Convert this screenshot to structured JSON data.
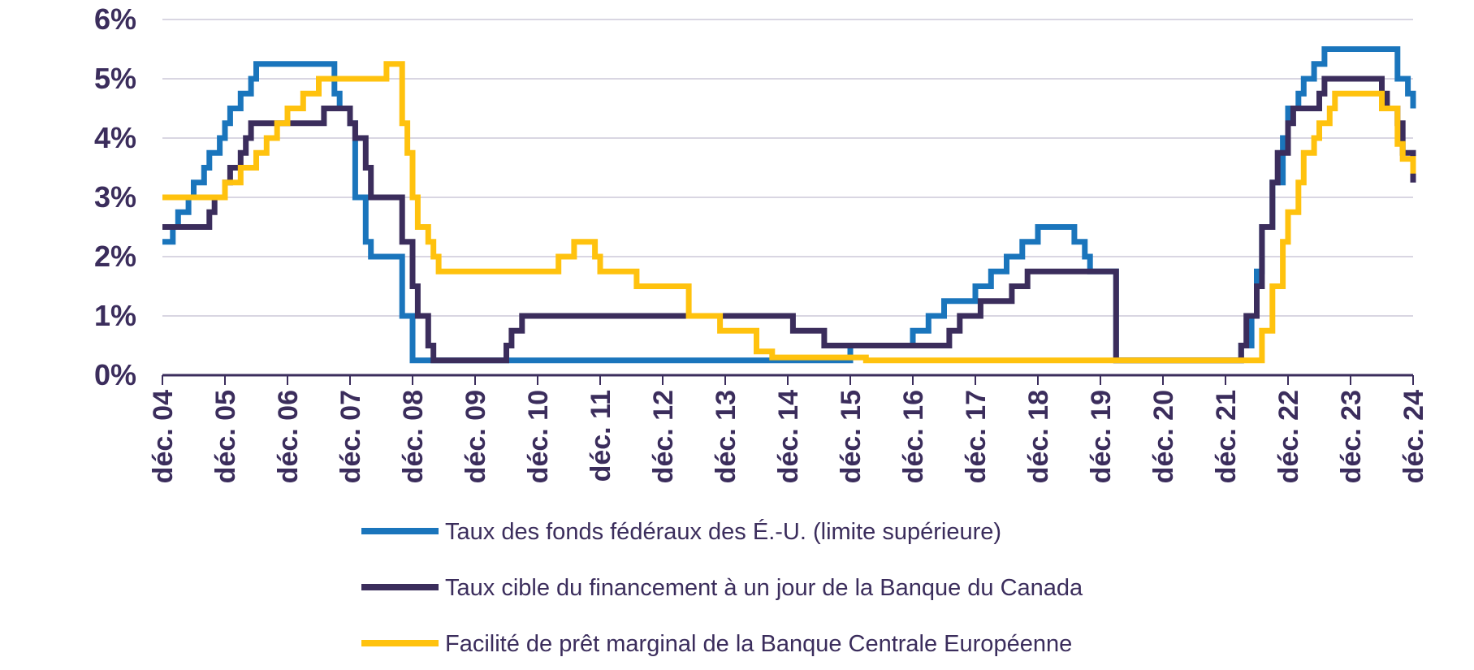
{
  "chart_data": {
    "type": "line",
    "step": true,
    "title": "",
    "xlabel": "",
    "ylabel": "",
    "ylim": [
      0,
      6
    ],
    "yticks": [
      "0%",
      "1%",
      "2%",
      "3%",
      "4%",
      "5%",
      "6%"
    ],
    "xticks": [
      "déc. 04",
      "déc. 05",
      "déc. 06",
      "déc. 07",
      "déc. 08",
      "déc. 09",
      "déc. 10",
      "déc. 11",
      "déc. 12",
      "déc. 13",
      "déc. 14",
      "déc. 15",
      "déc. 16",
      "déc. 17",
      "déc. 18",
      "déc. 19",
      "déc. 20",
      "déc. 21",
      "déc. 22",
      "déc. 23",
      "déc. 24"
    ],
    "grid": "horizontal",
    "legend_position": "bottom",
    "series": [
      {
        "name": "Taux des fonds fédéraux des É.-U. (limite supérieure)",
        "color": "#1a75bc",
        "x": [
          "2004-12",
          "2005-02",
          "2005-03",
          "2005-05",
          "2005-06",
          "2005-08",
          "2005-09",
          "2005-11",
          "2005-12",
          "2006-01",
          "2006-03",
          "2006-05",
          "2006-06",
          "2007-09",
          "2007-10",
          "2007-12",
          "2008-01",
          "2008-03",
          "2008-04",
          "2008-10",
          "2008-12",
          "2015-12",
          "2016-12",
          "2017-03",
          "2017-06",
          "2017-12",
          "2018-03",
          "2018-06",
          "2018-09",
          "2018-12",
          "2019-07",
          "2019-09",
          "2019-10",
          "2020-03",
          "2022-03",
          "2022-05",
          "2022-06",
          "2022-07",
          "2022-09",
          "2022-11",
          "2022-12",
          "2023-02",
          "2023-03",
          "2023-05",
          "2023-07",
          "2024-09",
          "2024-11",
          "2024-12"
        ],
        "values": [
          2.25,
          2.5,
          2.75,
          3.0,
          3.25,
          3.5,
          3.75,
          4.0,
          4.25,
          4.5,
          4.75,
          5.0,
          5.25,
          4.75,
          4.5,
          4.25,
          3.0,
          2.25,
          2.0,
          1.0,
          0.25,
          0.5,
          0.75,
          1.0,
          1.25,
          1.5,
          1.75,
          2.0,
          2.25,
          2.5,
          2.25,
          2.0,
          1.75,
          0.25,
          0.5,
          1.0,
          1.75,
          2.5,
          3.25,
          4.0,
          4.5,
          4.75,
          5.0,
          5.25,
          5.5,
          5.0,
          4.75,
          4.5
        ]
      },
      {
        "name": "Taux cible du financement à un jour de la Banque du Canada",
        "color": "#3b2d5c",
        "x": [
          "2004-12",
          "2005-09",
          "2005-10",
          "2005-12",
          "2006-01",
          "2006-03",
          "2006-04",
          "2006-05",
          "2007-07",
          "2007-12",
          "2008-01",
          "2008-03",
          "2008-04",
          "2008-10",
          "2008-12",
          "2009-01",
          "2009-03",
          "2009-04",
          "2010-06",
          "2010-07",
          "2010-09",
          "2015-01",
          "2015-07",
          "2017-07",
          "2017-09",
          "2018-01",
          "2018-07",
          "2018-10",
          "2020-03",
          "2022-03",
          "2022-04",
          "2022-06",
          "2022-07",
          "2022-09",
          "2022-10",
          "2022-12",
          "2023-01",
          "2023-06",
          "2023-07",
          "2024-06",
          "2024-07",
          "2024-09",
          "2024-10",
          "2024-12"
        ],
        "values": [
          2.5,
          2.75,
          3.0,
          3.25,
          3.5,
          3.75,
          4.0,
          4.25,
          4.5,
          4.25,
          4.0,
          3.5,
          3.0,
          2.25,
          1.5,
          1.0,
          0.5,
          0.25,
          0.5,
          0.75,
          1.0,
          0.75,
          0.5,
          0.75,
          1.0,
          1.25,
          1.5,
          1.75,
          0.25,
          0.5,
          1.0,
          1.5,
          2.5,
          3.25,
          3.75,
          4.25,
          4.5,
          4.75,
          5.0,
          4.75,
          4.5,
          4.25,
          3.75,
          3.25
        ]
      },
      {
        "name": "Facilité de prêt marginal de la Banque Centrale Européenne",
        "color": "#ffc20e",
        "x": [
          "2004-12",
          "2005-12",
          "2006-03",
          "2006-06",
          "2006-08",
          "2006-10",
          "2006-12",
          "2007-03",
          "2007-06",
          "2008-07",
          "2008-10",
          "2008-11",
          "2008-12",
          "2009-01",
          "2009-03",
          "2009-04",
          "2009-05",
          "2011-04",
          "2011-07",
          "2011-11",
          "2011-12",
          "2012-07",
          "2013-05",
          "2013-11",
          "2014-06",
          "2014-09",
          "2015-12",
          "2016-03",
          "2022-07",
          "2022-09",
          "2022-11",
          "2022-12",
          "2023-02",
          "2023-03",
          "2023-05",
          "2023-06",
          "2023-08",
          "2023-09",
          "2024-06",
          "2024-09",
          "2024-10",
          "2024-12"
        ],
        "values": [
          3.0,
          3.25,
          3.5,
          3.75,
          4.0,
          4.25,
          4.5,
          4.75,
          5.0,
          5.25,
          4.25,
          3.75,
          3.0,
          2.5,
          2.25,
          2.0,
          1.75,
          2.0,
          2.25,
          2.0,
          1.75,
          1.5,
          1.0,
          0.75,
          0.4,
          0.3,
          0.3,
          0.25,
          0.75,
          1.5,
          2.25,
          2.75,
          3.25,
          3.75,
          4.0,
          4.25,
          4.5,
          4.75,
          4.5,
          3.9,
          3.65,
          3.4
        ]
      }
    ]
  }
}
